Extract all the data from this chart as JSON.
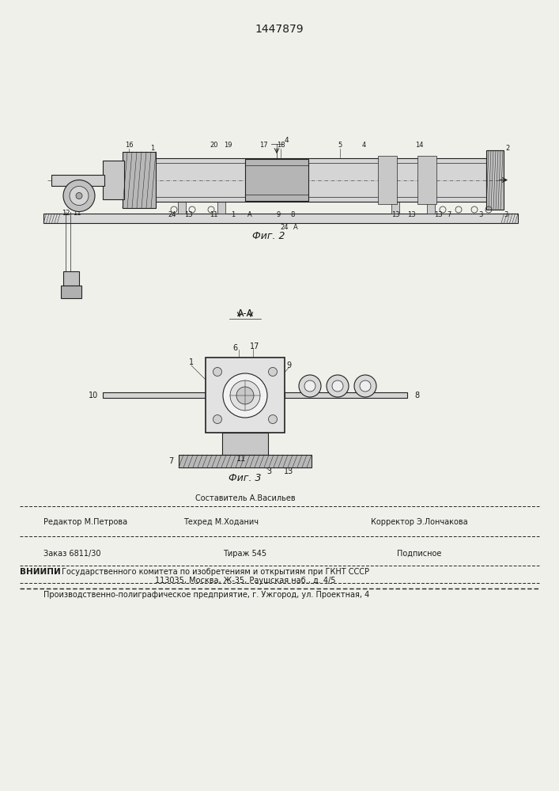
{
  "patent_number": "1447879",
  "bg_color": "#f0f0eb",
  "text_color": "#1a1a1a",
  "line_color": "#222222",
  "fig2_caption": "Фиг. 2",
  "fig3_caption": "Фиг. 3",
  "fig3_title": "A-A",
  "footer_constituter": "Составитель А.Васильев",
  "footer_editor": "Редактор М.Петрова",
  "footer_techred": "Техред М.Ходанич",
  "footer_corrector": "Корректор Э.Лончакова",
  "footer_order": "Заказ 6811/30",
  "footer_tirazh": "Тираж 545",
  "footer_podpisnoe": "Подписное",
  "footer_vniipи": "ВНИИПИ",
  "footer_vniipи_text": "Государственного комитета по изобретениям и открытиям при ГКНТ СССР",
  "footer_address": "113035, Москва, Ж-35, Раушская наб., д. 4/5",
  "footer_production": "Производственно-полиграфическое предприятие, г. Ужгород, ул. Проектная, 4"
}
